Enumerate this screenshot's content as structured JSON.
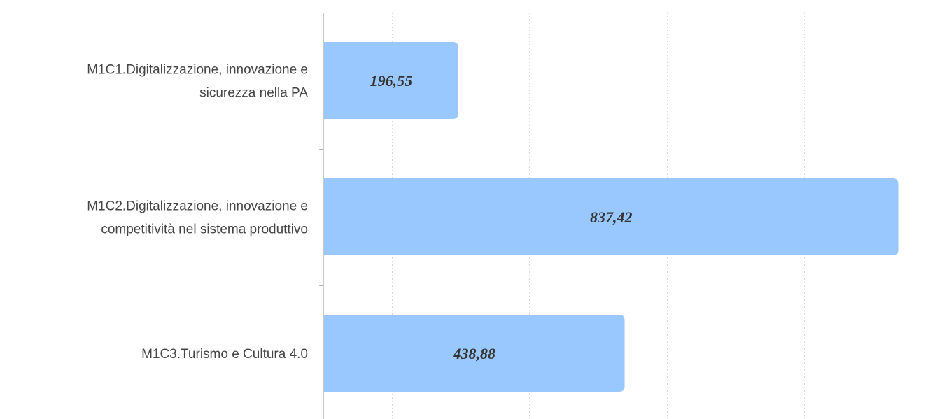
{
  "chart_data": {
    "type": "bar",
    "orientation": "horizontal",
    "categories": [
      [
        "M1C1.Digitalizzazione, innovazione e",
        "sicurezza nella PA"
      ],
      [
        "M1C2.Digitalizzazione, innovazione e",
        "competitività nel sistema produttivo"
      ],
      [
        "M1C3.Turismo e Cultura 4.0"
      ]
    ],
    "values": [
      196.55,
      837.42,
      438.88
    ],
    "data_labels": [
      "196,55",
      "837,42",
      "438,88"
    ],
    "title": "",
    "xlabel": "",
    "ylabel": "",
    "xlim": [
      0,
      900
    ],
    "grid": true,
    "gridlines_x": [
      100,
      200,
      300,
      400,
      500,
      600,
      700,
      800,
      900
    ],
    "bar_color": "#99c7ff",
    "legend": "none"
  }
}
